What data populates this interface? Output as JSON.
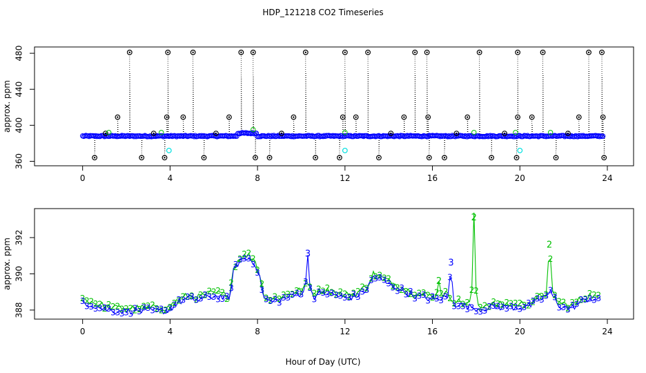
{
  "title": "HDP_121218  CO2 Timeseries",
  "xlabel": "Hour of Day (UTC)",
  "chart_data": [
    {
      "type": "scatter",
      "ylabel": "approx. ppm",
      "xlim": [
        -2.2,
        25.2
      ],
      "ylim": [
        355,
        487
      ],
      "x_ticks": [
        0,
        4,
        8,
        12,
        16,
        20,
        24
      ],
      "y_ticks": [
        360,
        400,
        440,
        480
      ],
      "colors": {
        "raw": "#000000",
        "filtered": "#0000ff",
        "flagged": "#00e0e0",
        "alt": "#00c000"
      },
      "baseline": 388,
      "spikes_high": [
        2.15,
        3.9,
        5.05,
        7.25,
        7.8,
        10.2,
        12.0,
        13.05,
        15.2,
        15.75,
        18.15,
        19.9,
        21.05,
        23.15,
        23.75
      ],
      "spikes_mid": [
        1.6,
        3.85,
        4.6,
        6.7,
        9.65,
        11.9,
        12.5,
        14.7,
        15.8,
        17.6,
        19.9,
        20.55,
        22.7,
        23.8
      ],
      "dips_low": [
        0.55,
        2.7,
        3.75,
        5.55,
        7.9,
        8.55,
        10.65,
        11.75,
        13.55,
        15.85,
        16.55,
        18.7,
        19.85,
        21.65,
        23.85
      ],
      "small_bumps": [
        1.05,
        3.25,
        6.1,
        9.1,
        14.1,
        17.1,
        19.3,
        22.2
      ],
      "flagged_points": [
        [
          3.95,
          372
        ],
        [
          12.0,
          372
        ],
        [
          20.0,
          372
        ]
      ]
    },
    {
      "type": "line",
      "ylabel": "approx. ppm",
      "xlim": [
        -2.2,
        25.2
      ],
      "ylim": [
        387.5,
        393.6
      ],
      "x_ticks": [
        0,
        4,
        8,
        12,
        16,
        20,
        24
      ],
      "y_ticks": [
        388,
        390,
        392
      ],
      "series": [
        {
          "name": "2",
          "color": "#00c000"
        },
        {
          "name": "3",
          "color": "#0000ff"
        }
      ],
      "profile": [
        [
          0,
          388.5
        ],
        [
          0.5,
          388.3
        ],
        [
          1,
          388.1
        ],
        [
          1.5,
          388.0
        ],
        [
          2,
          388.0
        ],
        [
          2.5,
          388.0
        ],
        [
          3,
          388.0
        ],
        [
          3.5,
          388.0
        ],
        [
          3.9,
          388.0
        ],
        [
          4.3,
          388.4
        ],
        [
          4.8,
          388.7
        ],
        [
          5.3,
          388.6
        ],
        [
          5.8,
          388.8
        ],
        [
          6.3,
          388.8
        ],
        [
          6.7,
          388.6
        ],
        [
          6.9,
          390.2
        ],
        [
          7.2,
          390.8
        ],
        [
          7.6,
          390.9
        ],
        [
          7.9,
          390.6
        ],
        [
          8.1,
          389.8
        ],
        [
          8.3,
          388.7
        ],
        [
          8.6,
          388.5
        ],
        [
          9.0,
          388.6
        ],
        [
          9.5,
          388.8
        ],
        [
          10.0,
          389.0
        ],
        [
          10.3,
          389.3
        ],
        [
          10.6,
          388.8
        ],
        [
          11.0,
          389.0
        ],
        [
          11.5,
          388.9
        ],
        [
          12.0,
          388.7
        ],
        [
          12.5,
          388.8
        ],
        [
          13.0,
          389.2
        ],
        [
          13.3,
          389.9
        ],
        [
          13.8,
          389.6
        ],
        [
          14.3,
          389.3
        ],
        [
          14.8,
          389.0
        ],
        [
          15.3,
          388.8
        ],
        [
          15.8,
          388.7
        ],
        [
          16.2,
          388.6
        ],
        [
          16.6,
          388.8
        ],
        [
          17.0,
          388.4
        ],
        [
          17.4,
          388.3
        ],
        [
          17.8,
          388.2
        ],
        [
          18.2,
          388.1
        ],
        [
          18.6,
          388.2
        ],
        [
          19.0,
          388.2
        ],
        [
          19.5,
          388.2
        ],
        [
          20.0,
          388.2
        ],
        [
          20.5,
          388.3
        ],
        [
          21.0,
          388.7
        ],
        [
          21.4,
          389.0
        ],
        [
          21.8,
          388.3
        ],
        [
          22.3,
          388.1
        ],
        [
          22.8,
          388.5
        ],
        [
          23.2,
          388.7
        ],
        [
          23.7,
          388.5
        ]
      ],
      "peaks": [
        {
          "x": 10.3,
          "y": 391.1,
          "label": "3"
        },
        {
          "x": 16.85,
          "y": 390.6,
          "label": "3"
        },
        {
          "x": 17.9,
          "y": 393.1,
          "label": "2"
        },
        {
          "x": 21.35,
          "y": 391.6,
          "label": "2"
        },
        {
          "x": 16.3,
          "y": 389.6,
          "label": "2"
        }
      ]
    }
  ]
}
